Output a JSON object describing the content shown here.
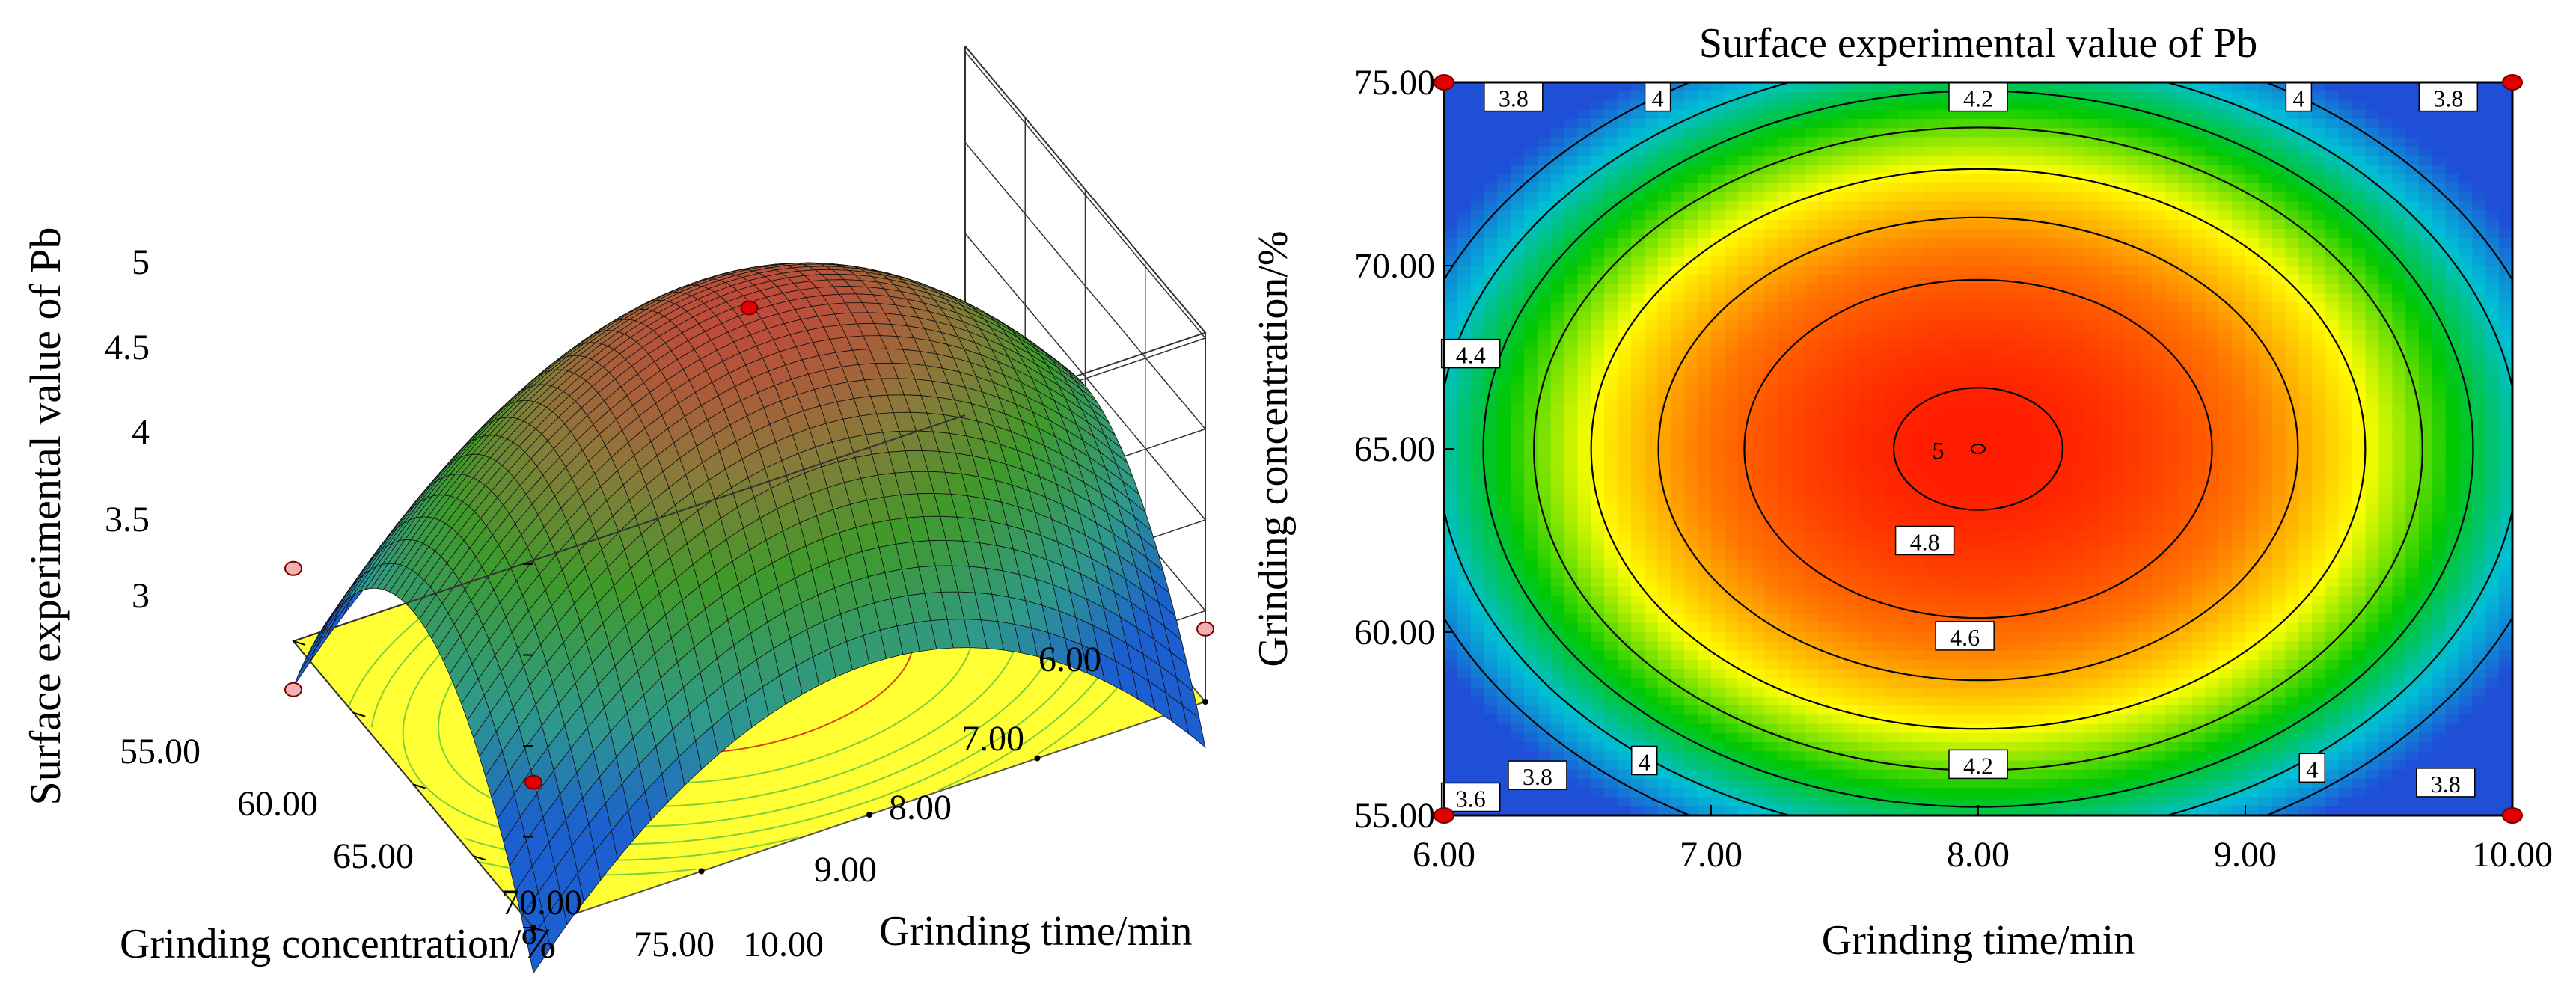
{
  "chart_data": [
    {
      "type": "surface3d",
      "zlabel": "Surface experimental value of Pb",
      "xlabel": "Grinding time/min",
      "ylabel": "Grinding concentration/%",
      "x_ticks": [
        "6.00",
        "7.00",
        "8.00",
        "9.00",
        "10.00"
      ],
      "y_ticks": [
        "55.00",
        "60.00",
        "65.00",
        "70.00",
        "75.00"
      ],
      "z_ticks": [
        "3",
        "3.5",
        "4",
        "4.5",
        "5"
      ],
      "xlim": [
        6,
        10
      ],
      "ylim": [
        55,
        75
      ],
      "zlim": [
        3,
        5
      ],
      "colormap": [
        "#1f4fd6",
        "#00bfd6",
        "#00c800",
        "#ffff00",
        "#ff7800",
        "#ff1a00"
      ],
      "floor_color": "#ffff33",
      "design_points": [
        {
          "x": 8,
          "y": 65,
          "z": 5.0
        },
        {
          "x": 6,
          "y": 75,
          "z": 3.8
        },
        {
          "x": 6,
          "y": 55,
          "z": 3.4
        },
        {
          "x": 10,
          "y": 75,
          "z": 3.4
        }
      ]
    },
    {
      "type": "contour",
      "title": "Surface experimental value of Pb",
      "xlabel": "Grinding time/min",
      "ylabel": "Grinding concentration/%",
      "x_ticks": [
        "6.00",
        "7.00",
        "8.00",
        "9.00",
        "10.00"
      ],
      "y_ticks": [
        "55.00",
        "60.00",
        "65.00",
        "70.00",
        "75.00"
      ],
      "xlim": [
        6,
        10
      ],
      "ylim": [
        55,
        75
      ],
      "levels": [
        3.6,
        3.8,
        4,
        4.2,
        4.4,
        4.6,
        4.8,
        5
      ],
      "level_labels": [
        {
          "text": "3.8",
          "x": 6.26,
          "y": 74.6
        },
        {
          "text": "4",
          "x": 6.8,
          "y": 74.6
        },
        {
          "text": "4.2",
          "x": 8.0,
          "y": 74.6
        },
        {
          "text": "4",
          "x": 9.2,
          "y": 74.6
        },
        {
          "text": "3.8",
          "x": 9.76,
          "y": 74.6
        },
        {
          "text": "4.4",
          "x": 6.1,
          "y": 67.6
        },
        {
          "text": "5",
          "x": 7.85,
          "y": 65.0
        },
        {
          "text": "4.8",
          "x": 7.8,
          "y": 62.5
        },
        {
          "text": "4.6",
          "x": 7.95,
          "y": 59.9
        },
        {
          "text": "4.2",
          "x": 8.0,
          "y": 56.4
        },
        {
          "text": "4",
          "x": 6.75,
          "y": 56.5
        },
        {
          "text": "3.8",
          "x": 6.35,
          "y": 56.1
        },
        {
          "text": "3.6",
          "x": 6.1,
          "y": 55.5
        },
        {
          "text": "4",
          "x": 9.25,
          "y": 56.3
        },
        {
          "text": "3.8",
          "x": 9.75,
          "y": 55.9
        }
      ],
      "model": {
        "center_x": 8,
        "center_y": 65,
        "peak": 5.03,
        "a": 0.3,
        "b": 0.0108
      },
      "colormap": [
        "#1f4fd6",
        "#00bfd6",
        "#00c800",
        "#ffff00",
        "#ff7800",
        "#ff1a00"
      ],
      "design_points": [
        {
          "x": 6,
          "y": 75
        },
        {
          "x": 10,
          "y": 75
        },
        {
          "x": 6,
          "y": 55
        },
        {
          "x": 10,
          "y": 55
        },
        {
          "x": 8,
          "y": 65
        }
      ]
    }
  ]
}
